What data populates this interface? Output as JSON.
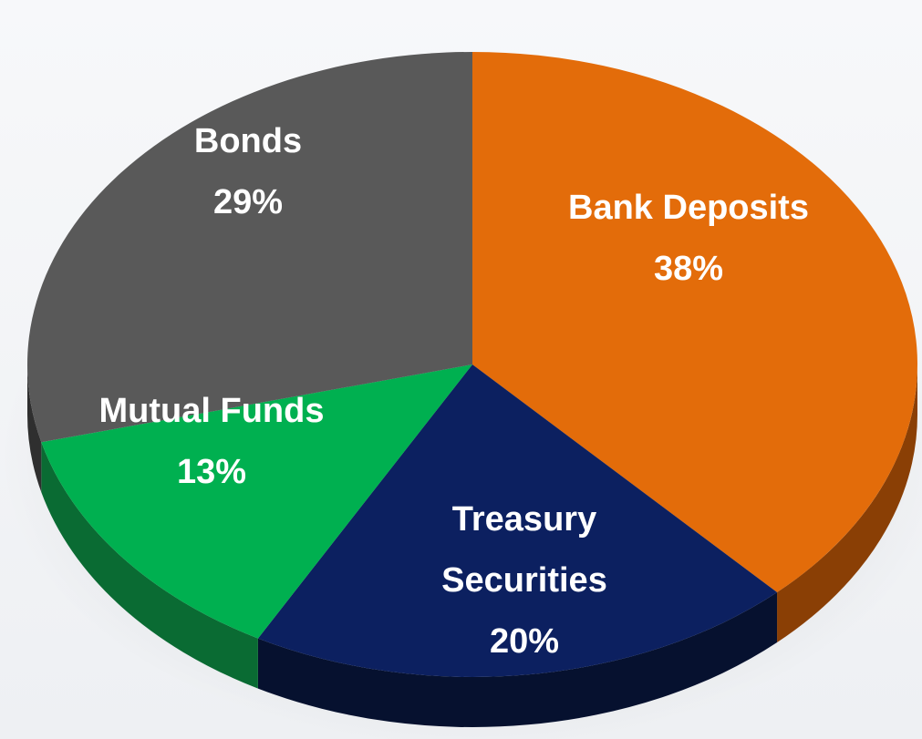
{
  "chart_data": {
    "type": "pie",
    "style": "3d",
    "slices": [
      {
        "label": [
          "Bank Deposits"
        ],
        "value": 38,
        "value_label": "38%",
        "color": "#e36c0a",
        "side_color": "#8a3f05"
      },
      {
        "label": [
          "Treasury",
          "Securities"
        ],
        "value": 20,
        "value_label": "20%",
        "color": "#0c2060",
        "side_color": "#06112f"
      },
      {
        "label": [
          "Mutual Funds"
        ],
        "value": 13,
        "value_label": "13%",
        "color": "#00b050",
        "side_color": "#0a6b33"
      },
      {
        "label": [
          "Bonds"
        ],
        "value": 29,
        "value_label": "29%",
        "color": "#595959",
        "side_color": "#2f2f2f"
      }
    ]
  }
}
